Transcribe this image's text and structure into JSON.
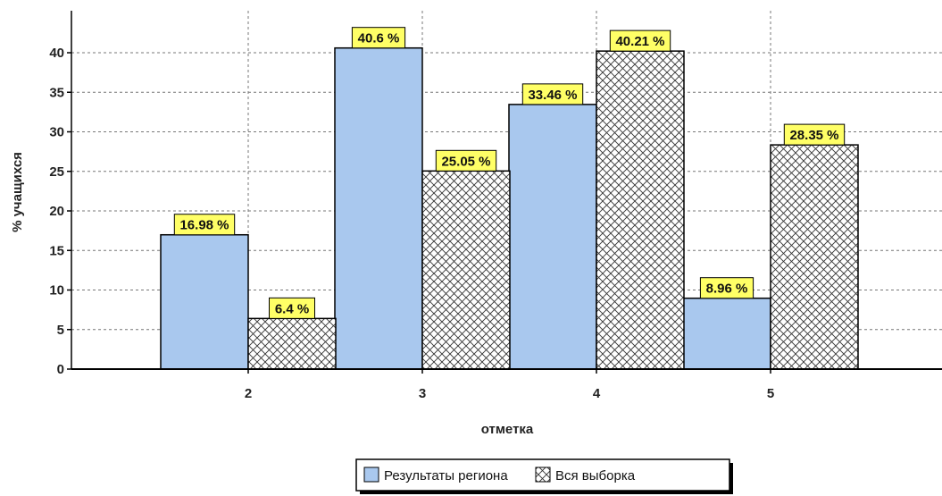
{
  "chart_data": {
    "type": "bar",
    "categories": [
      "2",
      "3",
      "4",
      "5"
    ],
    "series": [
      {
        "name": "Результаты региона",
        "values": [
          16.98,
          40.6,
          33.46,
          8.96
        ],
        "labels": [
          "16.98 %",
          "40.6 %",
          "33.46 %",
          "8.96 %"
        ],
        "color": "#a9c8ee",
        "pattern": "solid"
      },
      {
        "name": "Вся выборка",
        "values": [
          6.4,
          25.05,
          40.21,
          28.35
        ],
        "labels": [
          "6.4 %",
          "25.05 %",
          "40.21 %",
          "28.35 %"
        ],
        "color": "#ffffff",
        "pattern": "crosshatch"
      }
    ],
    "xlabel": "отметка",
    "ylabel": "% учащихся",
    "ylim": [
      0,
      40
    ],
    "yticks": [
      "0",
      "5",
      "10",
      "15",
      "20",
      "25",
      "30",
      "35",
      "40"
    ],
    "grid": true,
    "legend_position": "bottom-center",
    "label_background": "#ffff66"
  }
}
